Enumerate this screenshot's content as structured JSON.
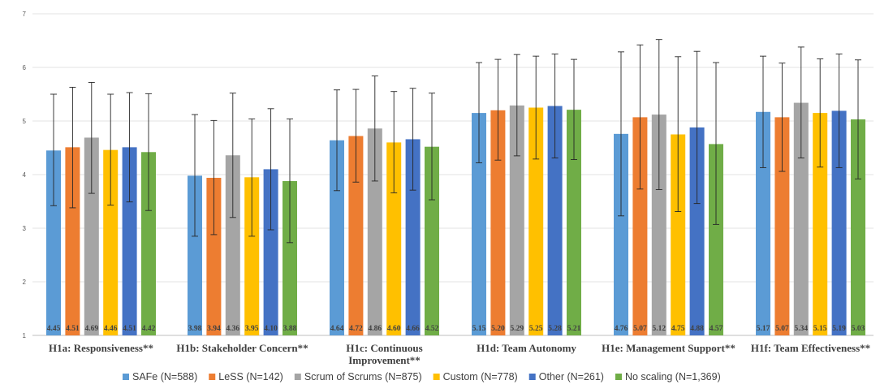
{
  "chart_data": {
    "type": "bar",
    "title": "",
    "xlabel": "",
    "ylabel": "",
    "ylim": [
      1,
      7
    ],
    "yticks": [
      1,
      2,
      3,
      4,
      5,
      6,
      7
    ],
    "grid": true,
    "legend_position": "bottom",
    "categories": [
      [
        "H1a: Responsiveness**"
      ],
      [
        "H1b: Stakeholder Concern**"
      ],
      [
        "H1c: Continuous",
        "Improvement**"
      ],
      [
        "H1d: Team Autonomy"
      ],
      [
        "H1e: Management Support**"
      ],
      [
        "H1f: Team Effectiveness**"
      ]
    ],
    "series": [
      {
        "name": "SAFe (N=588)",
        "color": "#5b9bd5",
        "values": [
          4.45,
          3.98,
          4.64,
          5.15,
          4.76,
          5.17
        ],
        "labels": [
          "4.45",
          "3.98",
          "4.64",
          "5.15",
          "4.76",
          "5.17"
        ],
        "error_low": [
          3.42,
          2.85,
          3.7,
          4.22,
          3.23,
          4.13
        ],
        "error_high": [
          5.5,
          5.12,
          5.58,
          6.09,
          6.29,
          6.21
        ]
      },
      {
        "name": "LeSS (N=142)",
        "color": "#ed7d31",
        "values": [
          4.51,
          3.94,
          4.72,
          5.2,
          5.07,
          5.07
        ],
        "labels": [
          "4.51",
          "3.94",
          "4.72",
          "5.20",
          "5.07",
          "5.07"
        ],
        "error_low": [
          3.38,
          2.88,
          3.86,
          4.27,
          3.73,
          4.06
        ],
        "error_high": [
          5.63,
          5.01,
          5.59,
          6.15,
          6.42,
          6.08
        ]
      },
      {
        "name": "Scrum of Scrums (N=875)",
        "color": "#a5a5a5",
        "values": [
          4.69,
          4.36,
          4.86,
          5.29,
          5.12,
          5.34
        ],
        "labels": [
          "4.69",
          "4.36",
          "4.86",
          "5.29",
          "5.12",
          "5.34"
        ],
        "error_low": [
          3.65,
          3.2,
          3.88,
          4.35,
          3.72,
          4.31
        ],
        "error_high": [
          5.72,
          5.52,
          5.84,
          6.24,
          6.52,
          6.38
        ]
      },
      {
        "name": "Custom (N=778)",
        "color": "#ffc000",
        "values": [
          4.46,
          3.95,
          4.6,
          5.25,
          4.75,
          5.15
        ],
        "labels": [
          "4.46",
          "3.95",
          "4.60",
          "5.25",
          "4.75",
          "5.15"
        ],
        "error_low": [
          3.43,
          2.85,
          3.66,
          4.29,
          3.31,
          4.14
        ],
        "error_high": [
          5.5,
          5.04,
          5.55,
          6.21,
          6.2,
          6.16
        ]
      },
      {
        "name": "Other (N=261)",
        "color": "#4472c4",
        "values": [
          4.51,
          4.1,
          4.66,
          5.28,
          4.88,
          5.19
        ],
        "labels": [
          "4.51",
          "4.10",
          "4.66",
          "5.28",
          "4.88",
          "5.19"
        ],
        "error_low": [
          3.49,
          2.97,
          3.71,
          4.31,
          3.46,
          4.13
        ],
        "error_high": [
          5.53,
          5.23,
          5.61,
          6.25,
          6.3,
          6.25
        ]
      },
      {
        "name": "No scaling (N=1,369)",
        "color": "#70ad47",
        "values": [
          4.42,
          3.88,
          4.52,
          5.21,
          4.57,
          5.03
        ],
        "labels": [
          "4.42",
          "3.88",
          "4.52",
          "5.21",
          "4.57",
          "5.03"
        ],
        "error_low": [
          3.33,
          2.73,
          3.53,
          4.28,
          3.07,
          3.92
        ],
        "error_high": [
          5.51,
          5.04,
          5.52,
          6.15,
          6.09,
          6.14
        ]
      }
    ]
  }
}
